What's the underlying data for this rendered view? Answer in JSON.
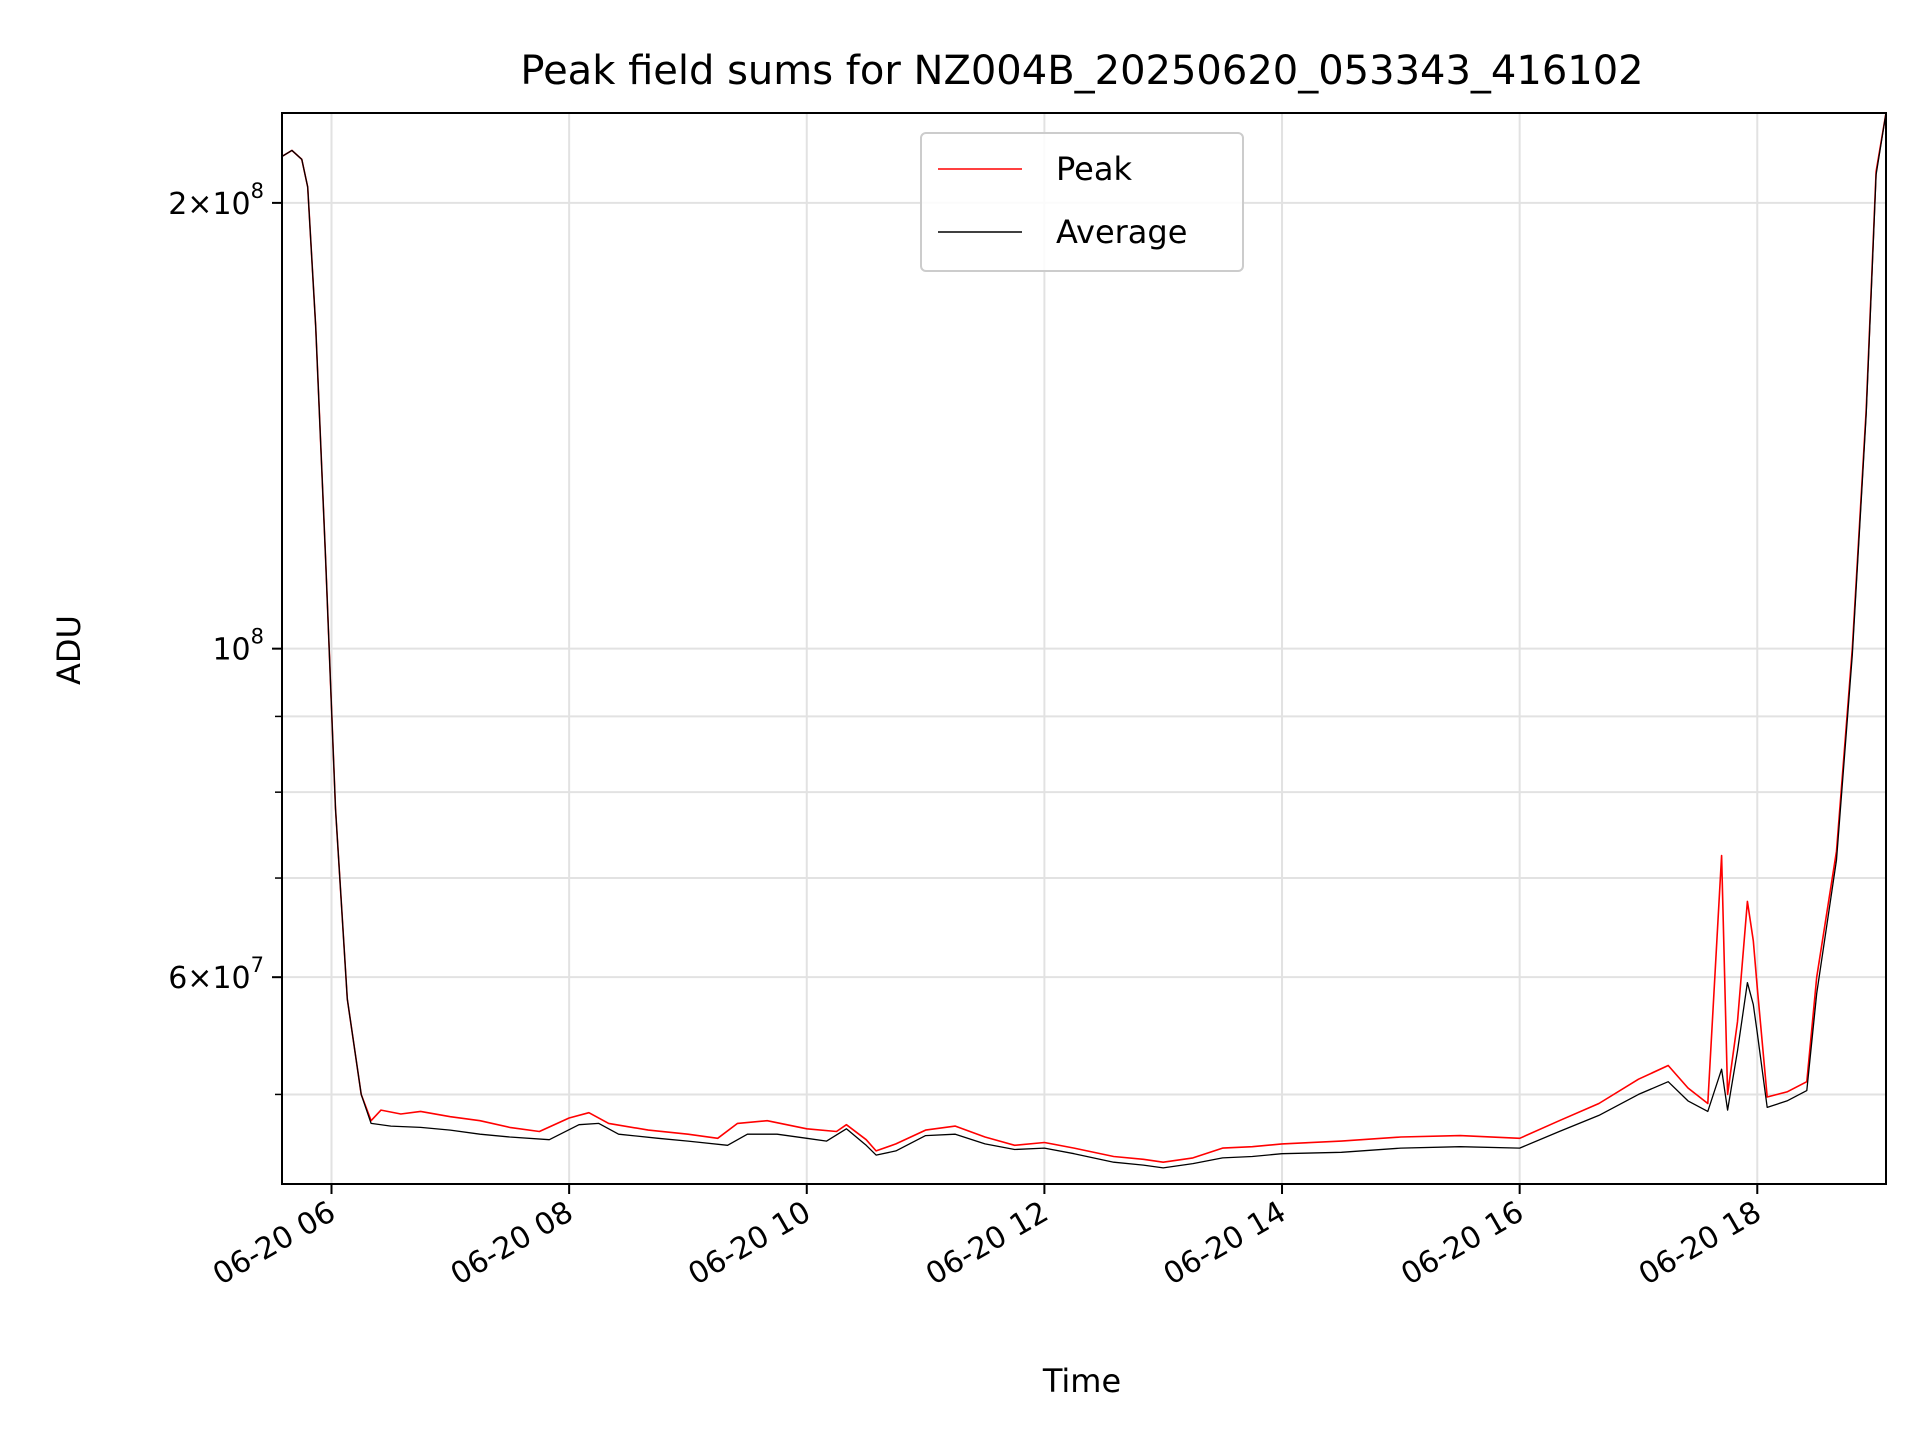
{
  "chart_data": {
    "type": "line",
    "title": "Peak field sums for NZ004B_20250620_053343_416102",
    "xlabel": "Time",
    "ylabel": "ADU",
    "yscale": "log",
    "ylim": [
      43500000,
      230000000
    ],
    "xlim": [
      "06-20 05:35",
      "06-20 19:05"
    ],
    "grid": true,
    "legend_position": "top-center",
    "x_ticks": [
      "06-20 06",
      "06-20 08",
      "06-20 10",
      "06-20 12",
      "06-20 14",
      "06-20 16",
      "06-20 18"
    ],
    "y_ticks": [
      {
        "value": 60000000,
        "mantissa": "6",
        "exponent": "7"
      },
      {
        "value": 100000000,
        "mantissa": "",
        "exponent": "8"
      },
      {
        "value": 200000000,
        "mantissa": "2",
        "exponent": "8"
      }
    ],
    "series": [
      {
        "name": "Peak",
        "color": "#ff0000",
        "points": [
          [
            "06-20 05:35",
            215000000
          ],
          [
            "06-20 05:40",
            217000000
          ],
          [
            "06-20 05:45",
            214000000
          ],
          [
            "06-20 05:48",
            205000000
          ],
          [
            "06-20 05:52",
            165000000
          ],
          [
            "06-20 05:57",
            115000000
          ],
          [
            "06-20 06:02",
            78000000
          ],
          [
            "06-20 06:08",
            58000000
          ],
          [
            "06-20 06:15",
            50000000
          ],
          [
            "06-20 06:20",
            48000000
          ],
          [
            "06-20 06:25",
            48800000
          ],
          [
            "06-20 06:35",
            48500000
          ],
          [
            "06-20 06:45",
            48700000
          ],
          [
            "06-20 07:00",
            48300000
          ],
          [
            "06-20 07:15",
            48000000
          ],
          [
            "06-20 07:30",
            47500000
          ],
          [
            "06-20 07:45",
            47200000
          ],
          [
            "06-20 08:00",
            48200000
          ],
          [
            "06-20 08:10",
            48600000
          ],
          [
            "06-20 08:20",
            47800000
          ],
          [
            "06-20 08:40",
            47300000
          ],
          [
            "06-20 09:00",
            47000000
          ],
          [
            "06-20 09:15",
            46700000
          ],
          [
            "06-20 09:25",
            47800000
          ],
          [
            "06-20 09:40",
            48000000
          ],
          [
            "06-20 10:00",
            47400000
          ],
          [
            "06-20 10:15",
            47200000
          ],
          [
            "06-20 10:20",
            47700000
          ],
          [
            "06-20 10:30",
            46600000
          ],
          [
            "06-20 10:35",
            45800000
          ],
          [
            "06-20 10:45",
            46300000
          ],
          [
            "06-20 11:00",
            47300000
          ],
          [
            "06-20 11:15",
            47600000
          ],
          [
            "06-20 11:30",
            46800000
          ],
          [
            "06-20 11:45",
            46200000
          ],
          [
            "06-20 12:00",
            46400000
          ],
          [
            "06-20 12:15",
            46000000
          ],
          [
            "06-20 12:35",
            45400000
          ],
          [
            "06-20 12:50",
            45200000
          ],
          [
            "06-20 13:00",
            45000000
          ],
          [
            "06-20 13:15",
            45300000
          ],
          [
            "06-20 13:30",
            46000000
          ],
          [
            "06-20 13:45",
            46100000
          ],
          [
            "06-20 14:00",
            46300000
          ],
          [
            "06-20 14:30",
            46500000
          ],
          [
            "06-20 15:00",
            46800000
          ],
          [
            "06-20 15:30",
            46900000
          ],
          [
            "06-20 16:00",
            46700000
          ],
          [
            "06-20 16:20",
            48000000
          ],
          [
            "06-20 16:40",
            49300000
          ],
          [
            "06-20 17:00",
            51200000
          ],
          [
            "06-20 17:15",
            52300000
          ],
          [
            "06-20 17:25",
            50500000
          ],
          [
            "06-20 17:35",
            49300000
          ],
          [
            "06-20 17:42",
            72500000
          ],
          [
            "06-20 17:45",
            50000000
          ],
          [
            "06-20 17:50",
            56000000
          ],
          [
            "06-20 17:55",
            67500000
          ],
          [
            "06-20 17:58",
            63500000
          ],
          [
            "06-20 18:00",
            59000000
          ],
          [
            "06-20 18:05",
            49800000
          ],
          [
            "06-20 18:15",
            50200000
          ],
          [
            "06-20 18:25",
            51000000
          ],
          [
            "06-20 18:30",
            60000000
          ],
          [
            "06-20 18:40",
            73000000
          ],
          [
            "06-20 18:48",
            100000000
          ],
          [
            "06-20 18:55",
            145000000
          ],
          [
            "06-20 19:00",
            210000000
          ],
          [
            "06-20 19:05",
            230000000
          ]
        ]
      },
      {
        "name": "Average",
        "color": "#000000",
        "points": [
          [
            "06-20 05:35",
            215000000
          ],
          [
            "06-20 05:40",
            217000000
          ],
          [
            "06-20 05:45",
            214000000
          ],
          [
            "06-20 05:48",
            205000000
          ],
          [
            "06-20 05:52",
            165000000
          ],
          [
            "06-20 05:57",
            115000000
          ],
          [
            "06-20 06:02",
            78000000
          ],
          [
            "06-20 06:08",
            58000000
          ],
          [
            "06-20 06:15",
            50000000
          ],
          [
            "06-20 06:20",
            47800000
          ],
          [
            "06-20 06:30",
            47600000
          ],
          [
            "06-20 06:45",
            47500000
          ],
          [
            "06-20 07:00",
            47300000
          ],
          [
            "06-20 07:15",
            47000000
          ],
          [
            "06-20 07:30",
            46800000
          ],
          [
            "06-20 07:50",
            46600000
          ],
          [
            "06-20 08:05",
            47700000
          ],
          [
            "06-20 08:15",
            47800000
          ],
          [
            "06-20 08:25",
            47000000
          ],
          [
            "06-20 08:45",
            46700000
          ],
          [
            "06-20 09:00",
            46500000
          ],
          [
            "06-20 09:20",
            46200000
          ],
          [
            "06-20 09:30",
            47000000
          ],
          [
            "06-20 09:45",
            47000000
          ],
          [
            "06-20 10:00",
            46700000
          ],
          [
            "06-20 10:10",
            46500000
          ],
          [
            "06-20 10:20",
            47400000
          ],
          [
            "06-20 10:30",
            46200000
          ],
          [
            "06-20 10:35",
            45500000
          ],
          [
            "06-20 10:45",
            45800000
          ],
          [
            "06-20 11:00",
            46900000
          ],
          [
            "06-20 11:15",
            47000000
          ],
          [
            "06-20 11:30",
            46300000
          ],
          [
            "06-20 11:45",
            45900000
          ],
          [
            "06-20 12:00",
            46000000
          ],
          [
            "06-20 12:15",
            45600000
          ],
          [
            "06-20 12:35",
            45000000
          ],
          [
            "06-20 12:50",
            44800000
          ],
          [
            "06-20 13:00",
            44600000
          ],
          [
            "06-20 13:15",
            44900000
          ],
          [
            "06-20 13:30",
            45300000
          ],
          [
            "06-20 13:45",
            45400000
          ],
          [
            "06-20 14:00",
            45600000
          ],
          [
            "06-20 14:30",
            45700000
          ],
          [
            "06-20 15:00",
            46000000
          ],
          [
            "06-20 15:30",
            46100000
          ],
          [
            "06-20 16:00",
            46000000
          ],
          [
            "06-20 16:20",
            47200000
          ],
          [
            "06-20 16:40",
            48400000
          ],
          [
            "06-20 17:00",
            50000000
          ],
          [
            "06-20 17:15",
            51000000
          ],
          [
            "06-20 17:25",
            49500000
          ],
          [
            "06-20 17:35",
            48700000
          ],
          [
            "06-20 17:42",
            52000000
          ],
          [
            "06-20 17:45",
            48800000
          ],
          [
            "06-20 17:50",
            53500000
          ],
          [
            "06-20 17:55",
            59500000
          ],
          [
            "06-20 17:58",
            57500000
          ],
          [
            "06-20 18:00",
            55000000
          ],
          [
            "06-20 18:05",
            49000000
          ],
          [
            "06-20 18:15",
            49500000
          ],
          [
            "06-20 18:25",
            50300000
          ],
          [
            "06-20 18:30",
            58500000
          ],
          [
            "06-20 18:40",
            72000000
          ],
          [
            "06-20 18:48",
            99000000
          ],
          [
            "06-20 18:55",
            144000000
          ],
          [
            "06-20 19:00",
            209000000
          ],
          [
            "06-20 19:05",
            230000000
          ]
        ]
      }
    ]
  }
}
